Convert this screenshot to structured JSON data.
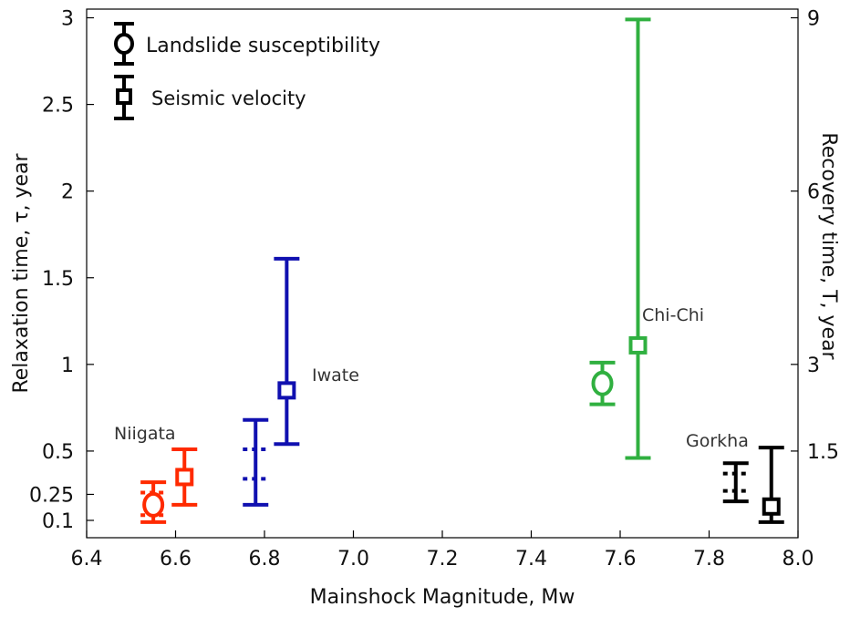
{
  "chart_data": {
    "type": "errorbar",
    "xlabel": "Mainshock Magnitude, Mw",
    "ylabel": "Relaxation time, τ, year",
    "y2label": "Recovery time, T, year",
    "xlim": [
      6.4,
      8.0
    ],
    "ylim": [
      0,
      3.05
    ],
    "y2lim": [
      0,
      9.15
    ],
    "x_ticks": [
      "6.4",
      "6.6",
      "6.8",
      "7.0",
      "7.2",
      "7.4",
      "7.6",
      "7.8",
      "8.0"
    ],
    "y_ticks": [
      "0.1",
      "0.25",
      "0.5",
      "1",
      "1.5",
      "2",
      "2.5",
      "3"
    ],
    "y2_ticks": [
      "1.5",
      "3",
      "6",
      "9"
    ],
    "legend": {
      "placement": "top-left",
      "entries": [
        {
          "marker": "circle",
          "label": "Landslide susceptibility"
        },
        {
          "marker": "square",
          "label": "Seismic velocity"
        }
      ]
    },
    "colors": {
      "Niigata": "#ff2a00",
      "Iwate": "#1010b0",
      "Chi-Chi": "#30b040",
      "Gorkha": "#000000"
    },
    "events": [
      {
        "name": "Niigata",
        "label": "Niigata",
        "landslide": {
          "x": 6.55,
          "y": 0.19,
          "ymin": 0.09,
          "ymax": 0.32,
          "dotted": [
            0.26,
            0.13
          ]
        },
        "seismic": {
          "x": 6.62,
          "y": 0.35,
          "ymin": 0.19,
          "ymax": 0.51
        }
      },
      {
        "name": "Iwate",
        "label": "Iwate",
        "landslide": {
          "x": 6.78,
          "y": null,
          "ymin": 0.19,
          "ymax": 0.68,
          "dotted": [
            0.51,
            0.34
          ]
        },
        "seismic": {
          "x": 6.85,
          "y": 0.85,
          "ymin": 0.54,
          "ymax": 1.61
        }
      },
      {
        "name": "Chi-Chi",
        "label": "Chi-Chi",
        "landslide": {
          "x": 7.56,
          "y": 0.89,
          "ymin": 0.77,
          "ymax": 1.01
        },
        "seismic": {
          "x": 7.64,
          "y": 1.11,
          "ymin": 0.46,
          "ymax": 2.99
        }
      },
      {
        "name": "Gorkha",
        "label": "Gorkha",
        "landslide": {
          "x": 7.86,
          "y": null,
          "ymin": 0.21,
          "ymax": 0.43,
          "dotted": [
            0.37,
            0.27
          ]
        },
        "seismic": {
          "x": 7.94,
          "y": 0.18,
          "ymin": 0.09,
          "ymax": 0.52
        }
      }
    ]
  }
}
